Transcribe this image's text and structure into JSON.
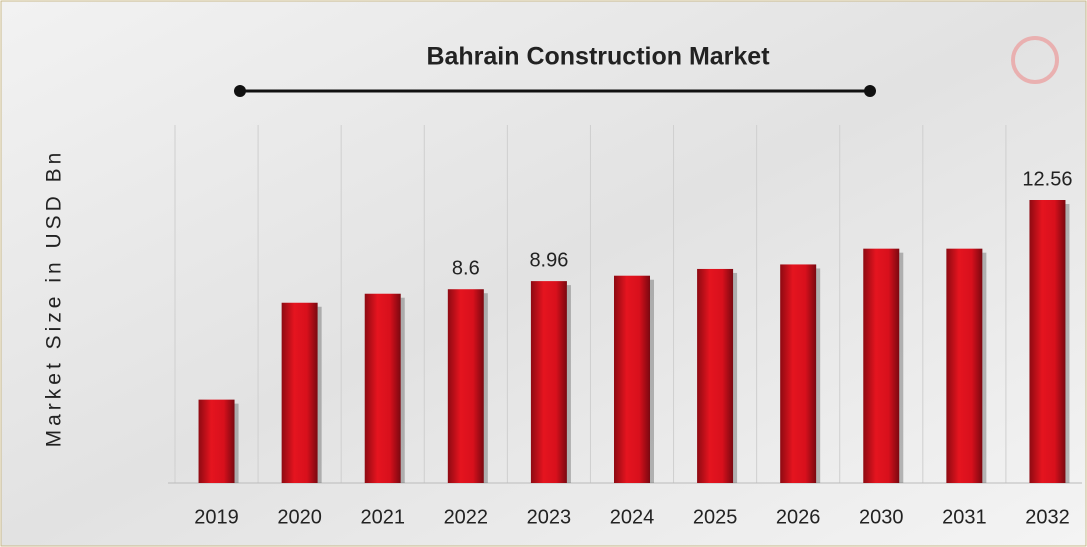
{
  "chart_data": {
    "type": "bar",
    "title": "Bahrain Construction Market",
    "y_label": "Market Size in USD Bn",
    "categories": [
      "2019",
      "2020",
      "2021",
      "2022",
      "2023",
      "2024",
      "2025",
      "2026",
      "2030",
      "2031",
      "2032"
    ],
    "values": [
      3.7,
      8.0,
      8.4,
      8.6,
      8.96,
      9.2,
      9.5,
      9.7,
      10.4,
      10.4,
      12.56
    ],
    "value_labels": [
      null,
      null,
      null,
      "8.6",
      "8.96",
      null,
      null,
      null,
      null,
      null,
      "12.56"
    ],
    "color": "#d8101c"
  }
}
